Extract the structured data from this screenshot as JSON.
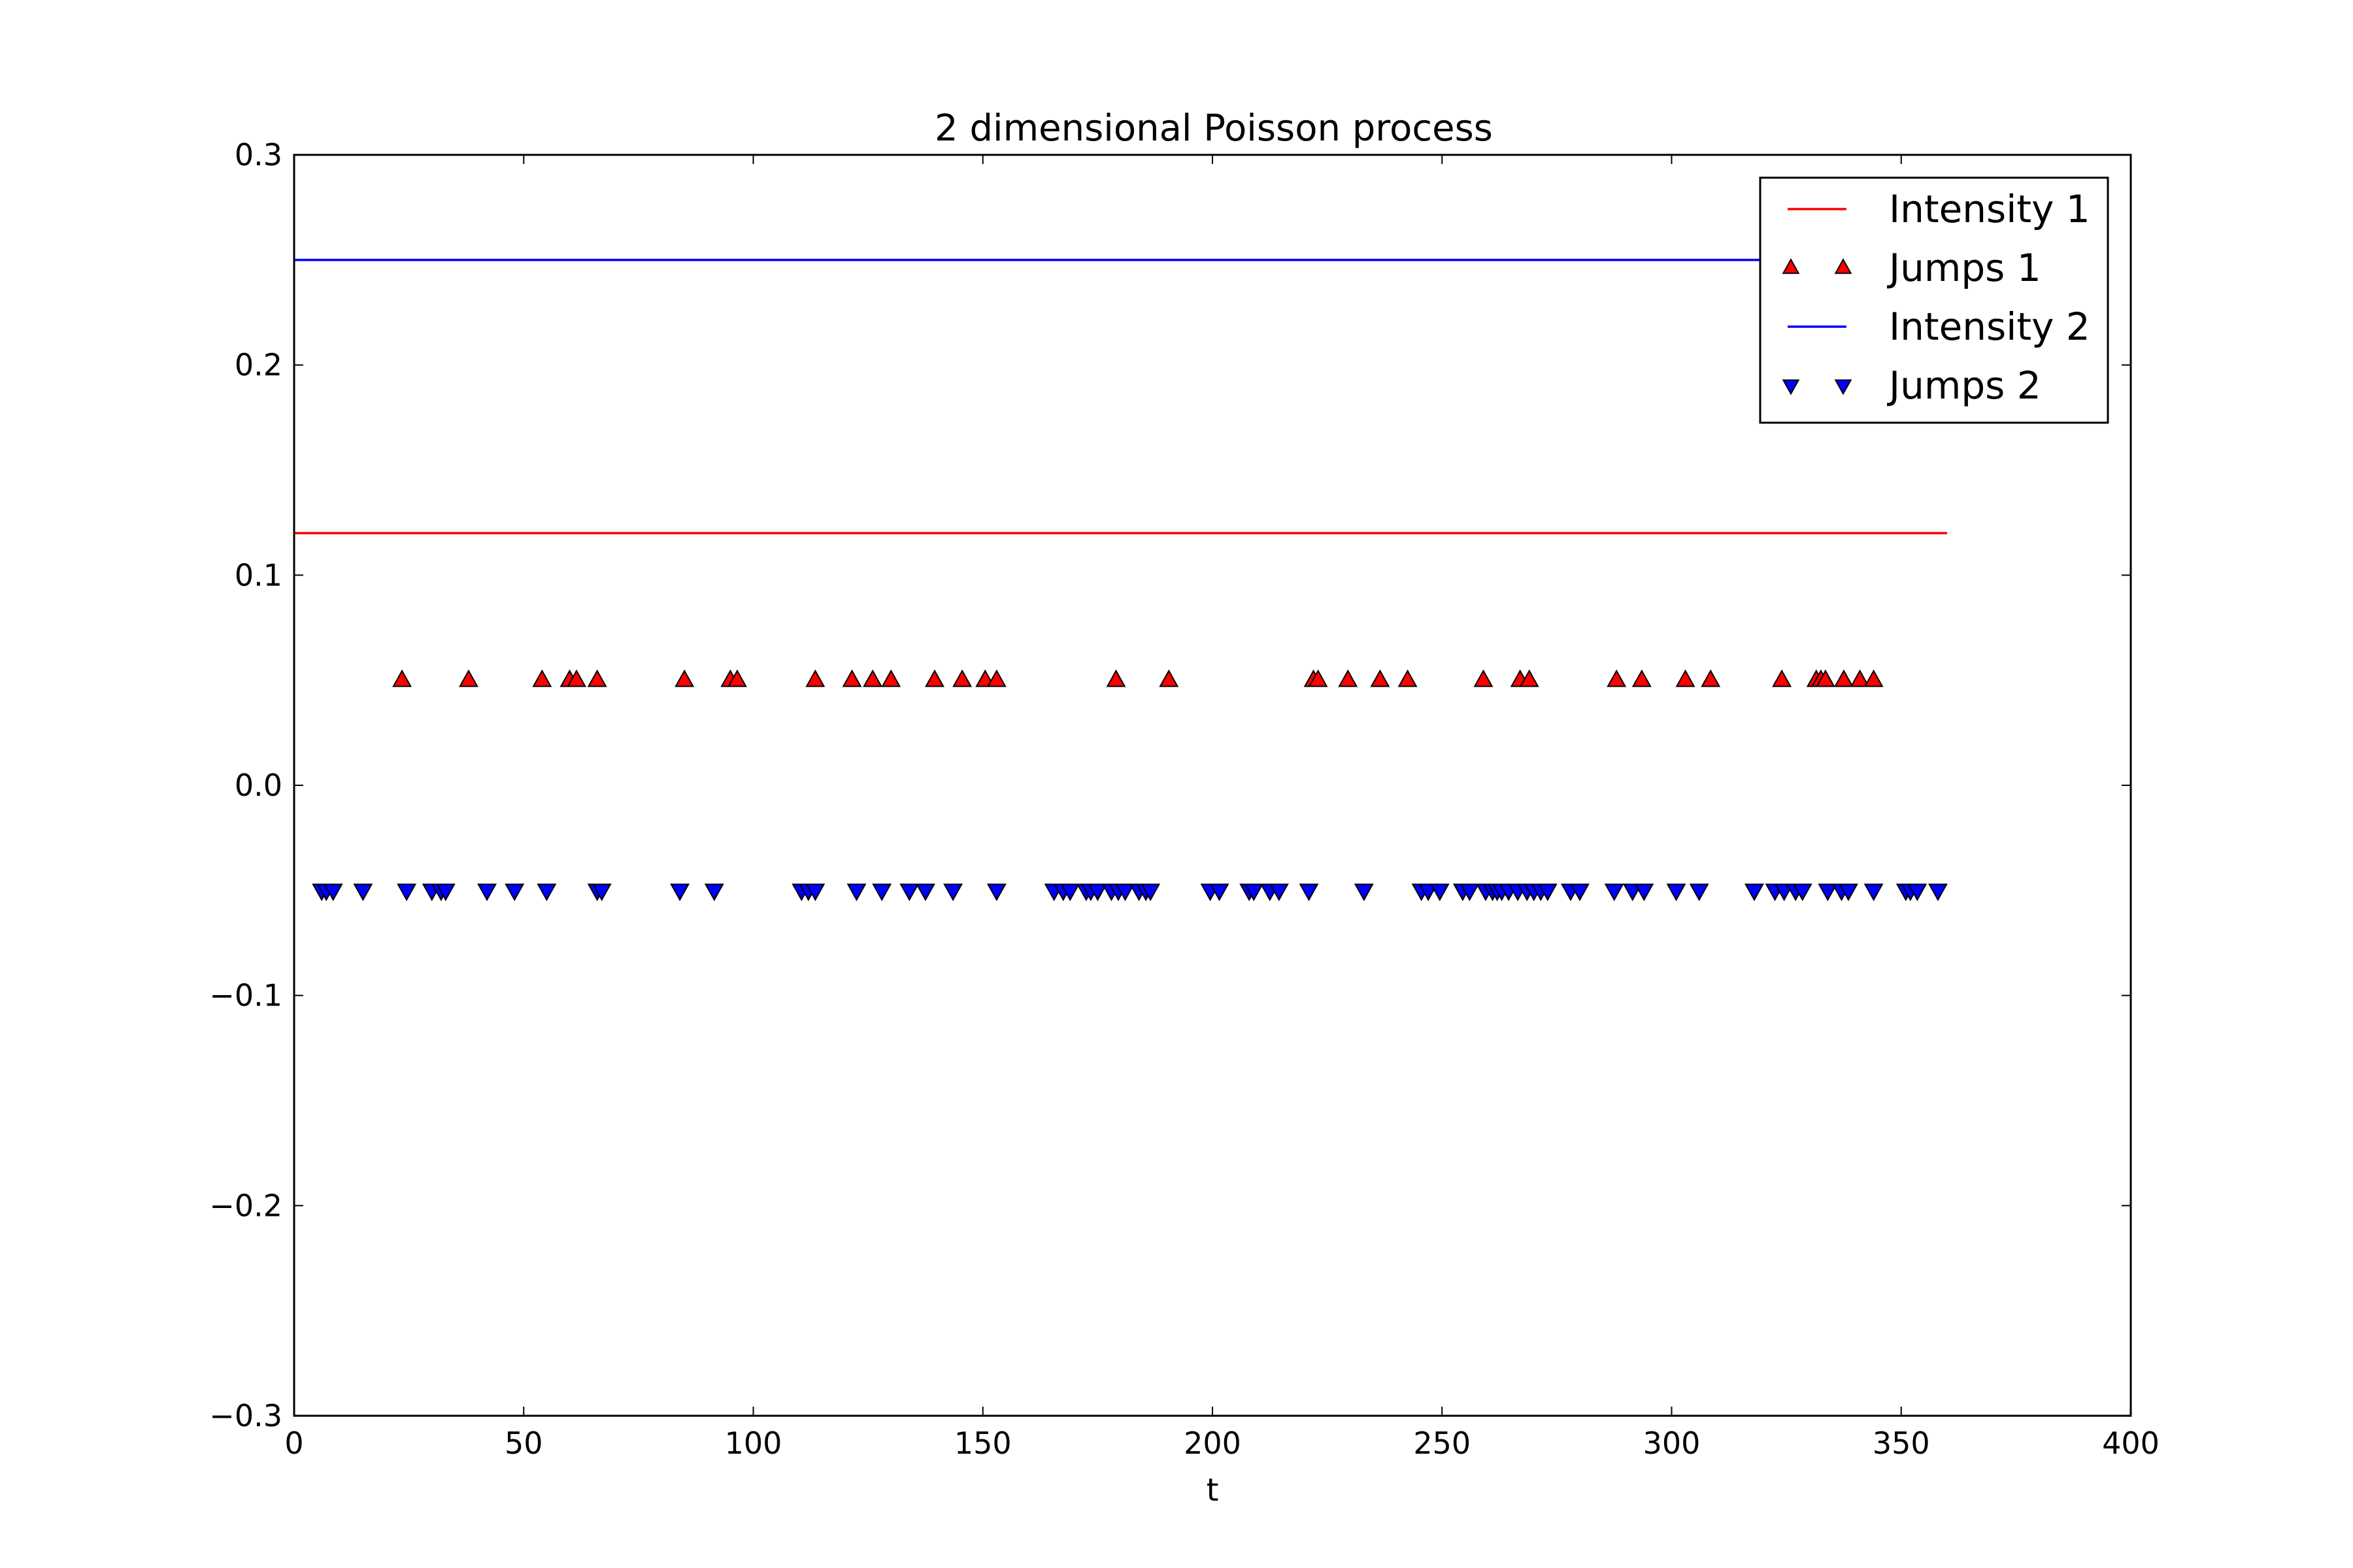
{
  "chart_data": {
    "type": "line",
    "title": "2 dimensional Poisson process",
    "xlabel": "t",
    "ylabel": "",
    "xlim": [
      0,
      400
    ],
    "ylim": [
      -0.3,
      0.3
    ],
    "xticks": [
      0,
      50,
      100,
      150,
      200,
      250,
      300,
      350,
      400
    ],
    "xtick_labels": [
      "0",
      "50",
      "100",
      "150",
      "200",
      "250",
      "300",
      "350",
      "400"
    ],
    "yticks": [
      -0.3,
      -0.2,
      -0.1,
      0.0,
      0.1,
      0.2,
      0.3
    ],
    "ytick_labels": [
      "−0.3",
      "−0.2",
      "−0.1",
      "0.0",
      "0.1",
      "0.2",
      "0.3"
    ],
    "grid": false,
    "legend_position": "top-right",
    "series": [
      {
        "name": "Intensity 1",
        "kind": "line",
        "color": "#ff0000",
        "x": [
          0,
          360
        ],
        "y": [
          0.12,
          0.12
        ]
      },
      {
        "name": "Jumps 1",
        "kind": "marker",
        "marker": "triangle-up",
        "color": "#ff0000",
        "y": 0.05,
        "x": [
          23.5,
          38,
          54,
          60,
          61.5,
          66,
          85,
          95,
          96.5,
          113.5,
          121.5,
          126,
          130,
          139.5,
          145.5,
          150.5,
          153,
          179,
          190.5,
          222,
          223,
          229.5,
          236.5,
          242.5,
          259,
          267,
          269,
          288,
          293.5,
          303,
          308.5,
          324,
          331.5,
          332.5,
          333.5,
          337.5,
          341,
          344
        ]
      },
      {
        "name": "Intensity 2",
        "kind": "line",
        "color": "#0000ff",
        "x": [
          0,
          360
        ],
        "y": [
          0.25,
          0.25
        ]
      },
      {
        "name": "Jumps 2",
        "kind": "marker",
        "marker": "triangle-down",
        "color": "#0000ff",
        "y": -0.05,
        "x": [
          6,
          7,
          8.5,
          15,
          24.5,
          30,
          32,
          33,
          42,
          48,
          55,
          66,
          67,
          84,
          91.5,
          110.5,
          112,
          113.5,
          122.5,
          128,
          134,
          137.5,
          143.5,
          153,
          165.5,
          167.5,
          169,
          172.5,
          173.5,
          175,
          178,
          179.5,
          181,
          184,
          185.5,
          186.5,
          199.5,
          201.5,
          208,
          209,
          212.5,
          214.5,
          221,
          233,
          245.5,
          247,
          249.5,
          254.5,
          256,
          259.5,
          261,
          262,
          263,
          264.5,
          266.5,
          268.5,
          270,
          271.5,
          273,
          278,
          280,
          287.5,
          291.5,
          294,
          301,
          306,
          318,
          322.5,
          324.5,
          327,
          328.5,
          334,
          337,
          338.5,
          344,
          351,
          352,
          353.5,
          358
        ]
      }
    ]
  }
}
